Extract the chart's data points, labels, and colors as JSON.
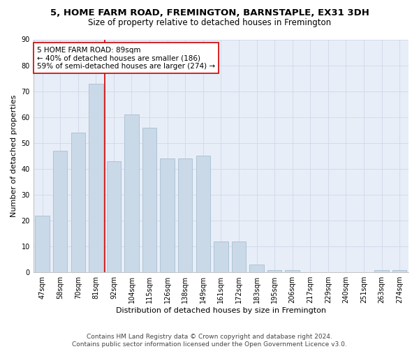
{
  "title": "5, HOME FARM ROAD, FREMINGTON, BARNSTAPLE, EX31 3DH",
  "subtitle": "Size of property relative to detached houses in Fremington",
  "xlabel": "Distribution of detached houses by size in Fremington",
  "ylabel": "Number of detached properties",
  "bar_labels": [
    "47sqm",
    "58sqm",
    "70sqm",
    "81sqm",
    "92sqm",
    "104sqm",
    "115sqm",
    "126sqm",
    "138sqm",
    "149sqm",
    "161sqm",
    "172sqm",
    "183sqm",
    "195sqm",
    "206sqm",
    "217sqm",
    "229sqm",
    "240sqm",
    "251sqm",
    "263sqm",
    "274sqm"
  ],
  "bar_values": [
    22,
    47,
    54,
    73,
    43,
    61,
    56,
    44,
    44,
    45,
    12,
    12,
    3,
    1,
    1,
    0,
    0,
    0,
    0,
    1,
    1
  ],
  "bar_color": "#c9d9e8",
  "bar_edgecolor": "#a8bfd0",
  "grid_color": "#d0d8e8",
  "background_color": "#e8eef8",
  "vline_color": "#cc0000",
  "annotation_text": "5 HOME FARM ROAD: 89sqm\n← 40% of detached houses are smaller (186)\n59% of semi-detached houses are larger (274) →",
  "annotation_box_color": "#ffffff",
  "annotation_box_edgecolor": "#cc0000",
  "ylim": [
    0,
    90
  ],
  "yticks": [
    0,
    10,
    20,
    30,
    40,
    50,
    60,
    70,
    80,
    90
  ],
  "footer_text": "Contains HM Land Registry data © Crown copyright and database right 2024.\nContains public sector information licensed under the Open Government Licence v3.0.",
  "title_fontsize": 9.5,
  "subtitle_fontsize": 8.5,
  "xlabel_fontsize": 8,
  "ylabel_fontsize": 8,
  "tick_fontsize": 7,
  "annotation_fontsize": 7.5,
  "footer_fontsize": 6.5
}
